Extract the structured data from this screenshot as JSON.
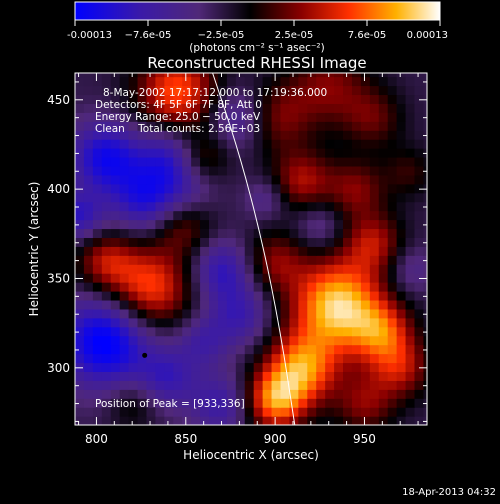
{
  "chart_data": {
    "type": "heatmap",
    "title": "Reconstructed RHESSI Image",
    "xlabel": "Heliocentric X (arcsec)",
    "ylabel": "Heliocentric Y (arcsec)",
    "xlim": [
      788,
      985
    ],
    "ylim": [
      268,
      465
    ],
    "xticks": [
      800,
      850,
      900,
      950
    ],
    "yticks": [
      300,
      350,
      400,
      450
    ],
    "colorbar": {
      "label": "(photons cm⁻² s⁻¹ asec⁻²)",
      "ticks": [
        "-0.00013",
        "−7.6e-05",
        "−2.5e-05",
        "2.5e-05",
        "7.6e-05",
        "0.00013"
      ],
      "range": [
        -0.00013,
        0.00013
      ]
    },
    "info": [
      "8-May-2002 17:17:12.000 to 17:19:36.000",
      "Detectors: 4F 5F 6F 7F 8F, Att 0",
      "Energy Range: 25.0 − 50.0 keV",
      "Clean    Total counts: 2.56E+03"
    ],
    "peak_label": "Position of Peak = [933,336]",
    "peak": [
      933,
      336
    ],
    "marker": [
      827,
      307
    ],
    "limb_curve": [
      [
        865,
        465
      ],
      [
        880,
        420
      ],
      [
        893,
        370
      ],
      [
        903,
        320
      ],
      [
        911,
        268
      ]
    ],
    "blobs": [
      [
        845,
        455,
        0.9,
        16
      ],
      [
        805,
        418,
        -0.8,
        14
      ],
      [
        790,
        385,
        -0.6,
        10
      ],
      [
        805,
        360,
        0.6,
        12
      ],
      [
        805,
        315,
        -1.0,
        18
      ],
      [
        828,
        395,
        -0.7,
        14
      ],
      [
        850,
        400,
        -0.3,
        12
      ],
      [
        840,
        420,
        -0.5,
        12
      ],
      [
        860,
        418,
        0.4,
        10
      ],
      [
        848,
        380,
        0.5,
        12
      ],
      [
        830,
        345,
        0.9,
        16
      ],
      [
        880,
        440,
        -0.5,
        12
      ],
      [
        900,
        440,
        0.5,
        14
      ],
      [
        930,
        458,
        0.5,
        16
      ],
      [
        955,
        440,
        0.4,
        12
      ],
      [
        915,
        405,
        0.6,
        12
      ],
      [
        945,
        400,
        0.5,
        12
      ],
      [
        975,
        410,
        0.3,
        10
      ],
      [
        925,
        380,
        -0.3,
        10
      ],
      [
        955,
        370,
        0.6,
        12
      ],
      [
        975,
        355,
        -0.3,
        10
      ],
      [
        900,
        360,
        0.5,
        12
      ],
      [
        870,
        355,
        -0.6,
        12
      ],
      [
        880,
        330,
        -0.5,
        12
      ],
      [
        935,
        335,
        1.3,
        18
      ],
      [
        915,
        300,
        1.0,
        14
      ],
      [
        960,
        320,
        0.7,
        12
      ],
      [
        970,
        300,
        0.6,
        12
      ],
      [
        950,
        280,
        0.5,
        12
      ],
      [
        900,
        282,
        1.0,
        12
      ],
      [
        870,
        280,
        -0.5,
        12
      ],
      [
        840,
        295,
        -0.5,
        12
      ],
      [
        860,
        315,
        -0.4,
        10
      ],
      [
        820,
        280,
        0.3,
        10
      ],
      [
        895,
        395,
        -0.3,
        8
      ]
    ]
  },
  "footer": {
    "timestamp": "18-Apr-2013 04:32"
  }
}
